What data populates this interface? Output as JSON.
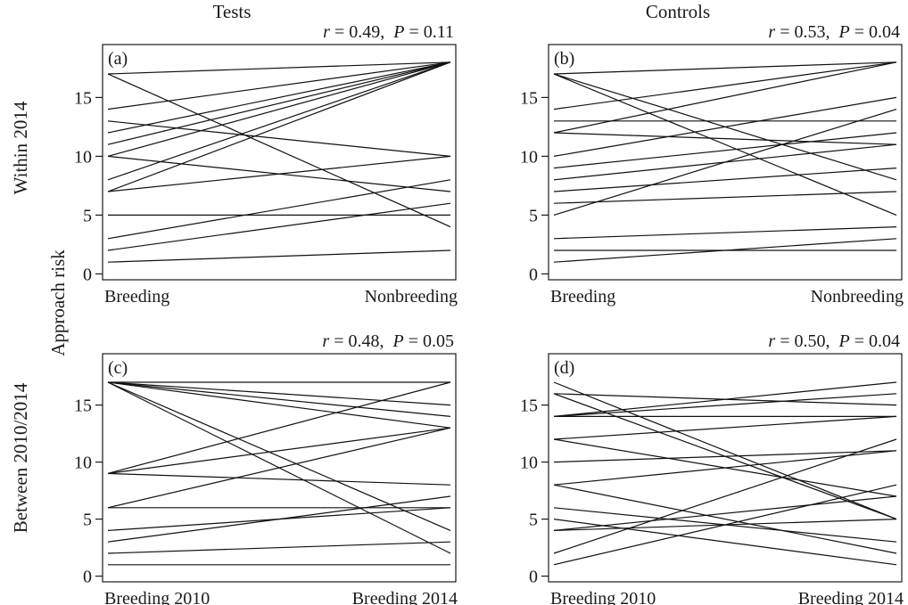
{
  "figure": {
    "col_titles": [
      "Tests",
      "Controls"
    ],
    "row_titles": [
      "Within 2014",
      "Between 2010/2014"
    ],
    "ylabel": "Approach risk"
  },
  "chart_data": [
    {
      "type": "line",
      "panel": "(a)",
      "stat_r": "r",
      "stat_r_val": " = 0.49,",
      "stat_p": "P",
      "stat_p_val": " = 0.11",
      "categories": [
        "Breeding",
        "Nonbreeding"
      ],
      "ylim": [
        -0.5,
        19.5
      ],
      "yticks": [
        0,
        5,
        10,
        15
      ],
      "series": [
        {
          "values": [
            17,
            18
          ]
        },
        {
          "values": [
            17,
            4
          ]
        },
        {
          "values": [
            14,
            18
          ]
        },
        {
          "values": [
            13,
            10
          ]
        },
        {
          "values": [
            12,
            18
          ]
        },
        {
          "values": [
            11,
            18
          ]
        },
        {
          "values": [
            10,
            18
          ]
        },
        {
          "values": [
            10,
            7
          ]
        },
        {
          "values": [
            8,
            18
          ]
        },
        {
          "values": [
            7,
            18
          ]
        },
        {
          "values": [
            7,
            10
          ]
        },
        {
          "values": [
            5,
            5
          ]
        },
        {
          "values": [
            3,
            8
          ]
        },
        {
          "values": [
            2,
            6
          ]
        },
        {
          "values": [
            1,
            2
          ]
        }
      ]
    },
    {
      "type": "line",
      "panel": "(b)",
      "title": "",
      "stat_r": "r",
      "stat_r_val": " = 0.53,",
      "stat_p": "P",
      "stat_p_val": " = 0.04",
      "categories": [
        "Breeding",
        "Nonbreeding"
      ],
      "ylim": [
        -0.5,
        19.5
      ],
      "yticks": [
        0,
        5,
        10,
        15
      ],
      "series": [
        {
          "values": [
            17,
            18
          ]
        },
        {
          "values": [
            17,
            8
          ]
        },
        {
          "values": [
            17,
            5
          ]
        },
        {
          "values": [
            14,
            18
          ]
        },
        {
          "values": [
            13,
            13
          ]
        },
        {
          "values": [
            12,
            18
          ]
        },
        {
          "values": [
            12,
            11
          ]
        },
        {
          "values": [
            10,
            15
          ]
        },
        {
          "values": [
            9,
            12
          ]
        },
        {
          "values": [
            8,
            11
          ]
        },
        {
          "values": [
            7,
            9
          ]
        },
        {
          "values": [
            6,
            7
          ]
        },
        {
          "values": [
            5,
            14
          ]
        },
        {
          "values": [
            3,
            4
          ]
        },
        {
          "values": [
            2,
            2
          ]
        },
        {
          "values": [
            1,
            3
          ]
        }
      ]
    },
    {
      "type": "line",
      "panel": "(c)",
      "stat_r": "r",
      "stat_r_val": " = 0.48,",
      "stat_p": "P",
      "stat_p_val": " = 0.05",
      "categories": [
        "Breeding 2010",
        "Breeding 2014"
      ],
      "ylim": [
        -0.5,
        19.5
      ],
      "yticks": [
        0,
        5,
        10,
        15
      ],
      "series": [
        {
          "values": [
            17,
            17
          ]
        },
        {
          "values": [
            17,
            15
          ]
        },
        {
          "values": [
            17,
            14
          ]
        },
        {
          "values": [
            17,
            13
          ]
        },
        {
          "values": [
            17,
            4
          ]
        },
        {
          "values": [
            17,
            2
          ]
        },
        {
          "values": [
            9,
            17
          ]
        },
        {
          "values": [
            9,
            13
          ]
        },
        {
          "values": [
            9,
            8
          ]
        },
        {
          "values": [
            6,
            13
          ]
        },
        {
          "values": [
            6,
            6
          ]
        },
        {
          "values": [
            4,
            6
          ]
        },
        {
          "values": [
            3,
            7
          ]
        },
        {
          "values": [
            2,
            3
          ]
        },
        {
          "values": [
            1,
            1
          ]
        }
      ]
    },
    {
      "type": "line",
      "panel": "(d)",
      "stat_r": "r",
      "stat_r_val": " = 0.50,",
      "stat_p": "P",
      "stat_p_val": " = 0.04",
      "categories": [
        "Breeding 2010",
        "Breeding 2014"
      ],
      "ylim": [
        -0.5,
        19.5
      ],
      "yticks": [
        0,
        5,
        10,
        15
      ],
      "series": [
        {
          "values": [
            17,
            5
          ]
        },
        {
          "values": [
            16,
            15
          ]
        },
        {
          "values": [
            16,
            5
          ]
        },
        {
          "values": [
            14,
            17
          ]
        },
        {
          "values": [
            14,
            16
          ]
        },
        {
          "values": [
            14,
            14
          ]
        },
        {
          "values": [
            12,
            14
          ]
        },
        {
          "values": [
            12,
            7
          ]
        },
        {
          "values": [
            10,
            11
          ]
        },
        {
          "values": [
            8,
            11
          ]
        },
        {
          "values": [
            8,
            2
          ]
        },
        {
          "values": [
            6,
            3
          ]
        },
        {
          "values": [
            5,
            1
          ]
        },
        {
          "values": [
            4,
            7
          ]
        },
        {
          "values": [
            4,
            5
          ]
        },
        {
          "values": [
            2,
            12
          ]
        },
        {
          "values": [
            1,
            8
          ]
        }
      ]
    }
  ]
}
